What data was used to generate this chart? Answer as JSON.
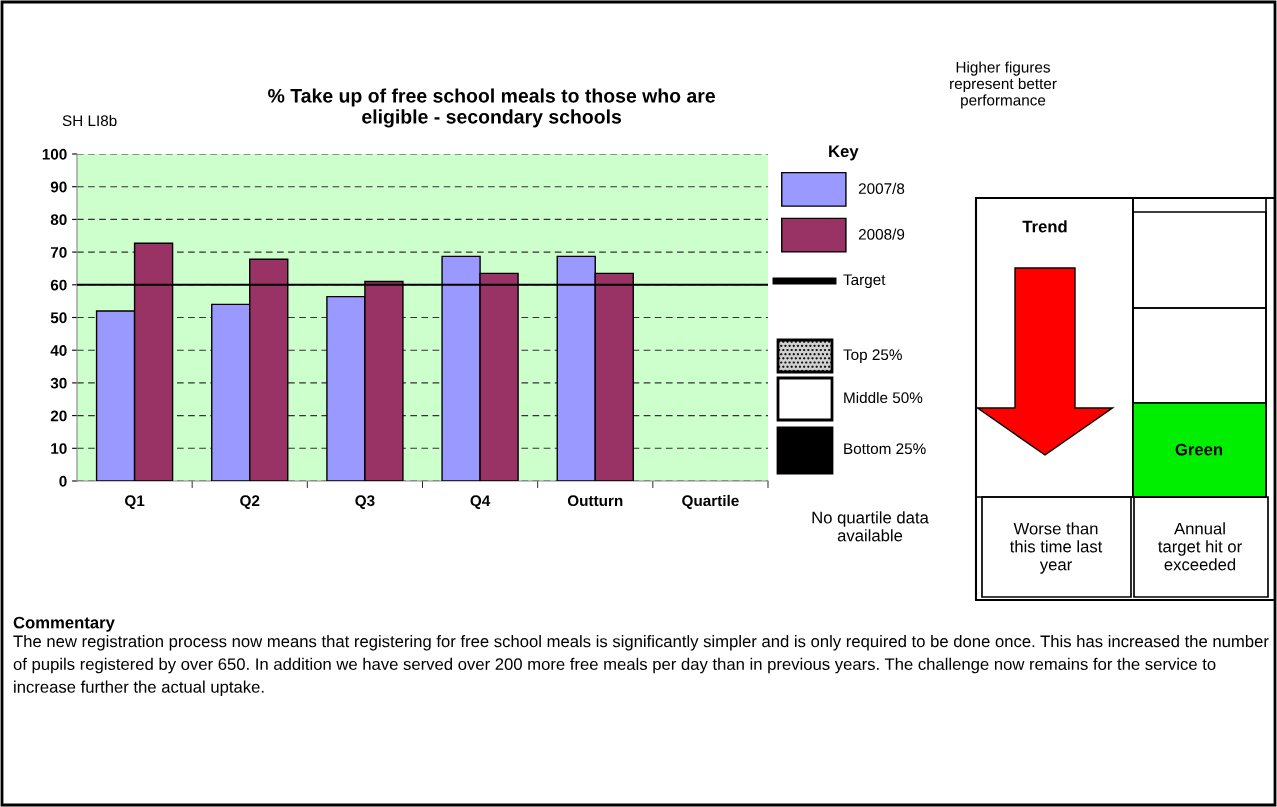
{
  "chart_data": {
    "type": "bar",
    "title": "% Take up of free school meals to those who are\neligible - secondary schools",
    "categories": [
      "Q1",
      "Q2",
      "Q3",
      "Q4",
      "Outturn",
      "Quartile"
    ],
    "series": [
      {
        "name": "2007/8",
        "color": "#9999ff",
        "values": [
          52,
          54,
          56.4,
          68.7,
          68.7,
          null
        ]
      },
      {
        "name": "2008/9",
        "color": "#993366",
        "values": [
          72.7,
          67.8,
          61,
          63.5,
          63.5,
          null
        ]
      }
    ],
    "ref_lines": [
      {
        "axis": "y",
        "value": 60,
        "label": "Target",
        "color": "#000000"
      }
    ],
    "ylim": [
      0,
      100
    ],
    "yticks": [
      0,
      10,
      20,
      30,
      40,
      50,
      60,
      70,
      80,
      90,
      100
    ],
    "grid": "y",
    "legend": "right",
    "legend_title": "Key",
    "annotations": [
      "Top 25%",
      "Middle 50%",
      "Bottom 25%",
      "SH LI8b",
      "Higher figures\nrepresent better\nperformance",
      "No quartile data\navailable",
      "Trend",
      "Worse than\nthis time last\nyear",
      "Green",
      "Annual\ntarget hit or\nexceeded",
      "Commentary",
      "The new registration process now means that registering for free school meals is significantly simpler and is only required to be done once. This has increased the number of pupils registered by over 650. In addition we have served over 200 more free meals per day than in previous years. The challenge now remains for the service to increase further the actual uptake."
    ]
  }
}
